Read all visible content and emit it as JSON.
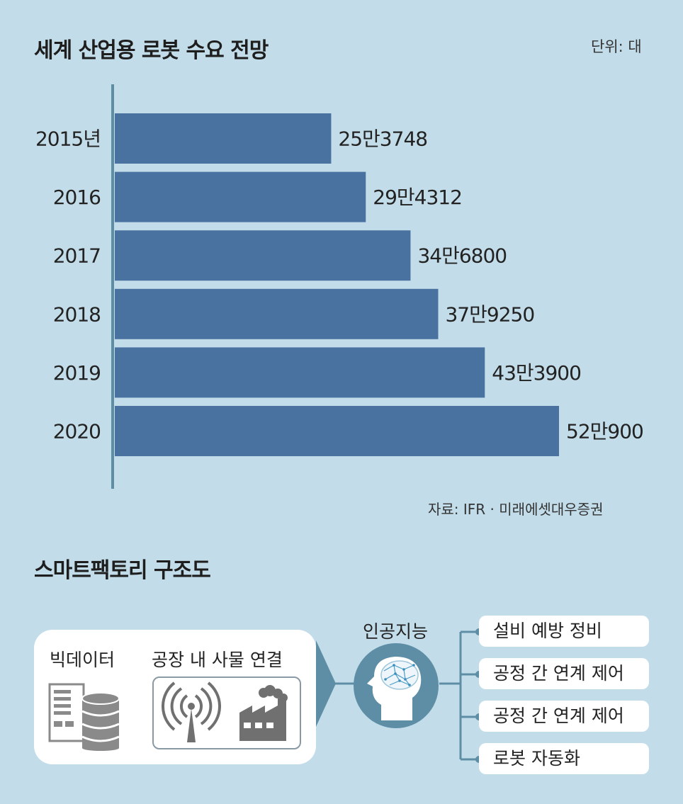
{
  "chart_data": {
    "type": "bar",
    "orientation": "horizontal",
    "title": "세계 산업용 로봇 수요 전망",
    "unit_label": "단위: 대",
    "categories": [
      "2015년",
      "2016",
      "2017",
      "2018",
      "2019",
      "2020"
    ],
    "values": [
      253748,
      294312,
      346800,
      379250,
      433900,
      520900
    ],
    "data_labels": [
      "25만3748",
      "29만4312",
      "34만6800",
      "37만9250",
      "43만3900",
      "52만900"
    ],
    "xlim": [
      0,
      520900
    ],
    "grid": false,
    "bar_color": "#4a72a1",
    "source": "자료: IFR · 미래에셋대우증권"
  },
  "diagram": {
    "title": "스마트팩토리 구조도",
    "big_data_label": "빅데이터",
    "iot_label": "공장 내 사물 연결",
    "ai_label": "인공지능",
    "outputs": [
      "설비 예방 정비",
      "공정 간 연계 제어",
      "공정 간 연계 제어",
      "로봇 자동화"
    ],
    "icons": [
      "server-database-icon",
      "antenna-icon",
      "factory-icon",
      "head-brain-icon"
    ],
    "accent_color": "#5e8ea6"
  }
}
